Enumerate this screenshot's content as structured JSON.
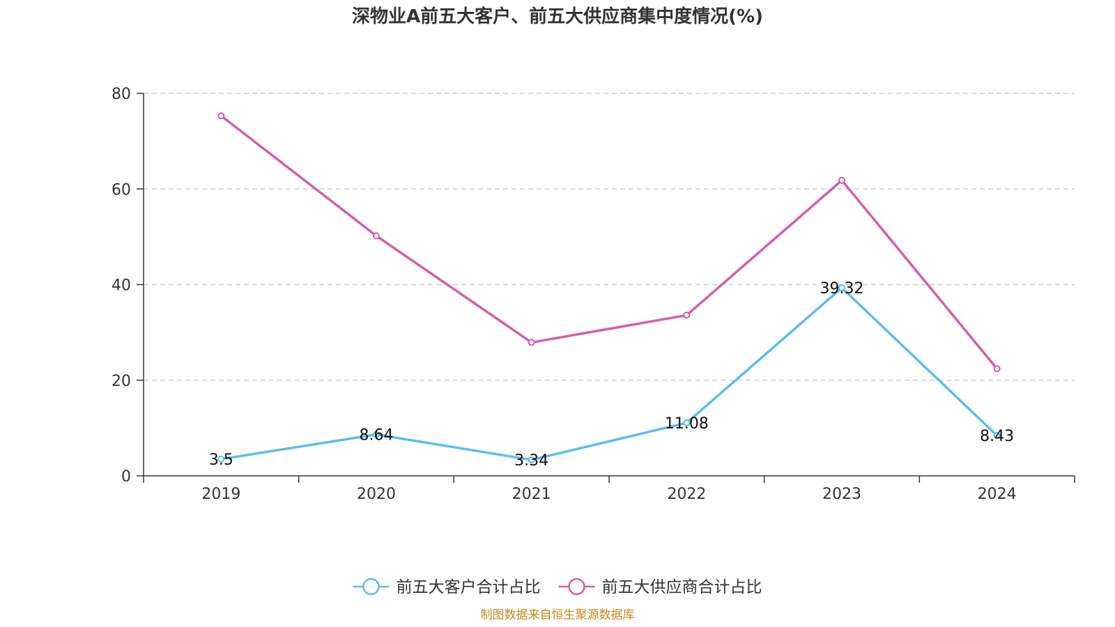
{
  "chart_data": {
    "type": "line",
    "title": "深物业A前五大客户、前五大供应商集中度情况(%)",
    "categories": [
      "2019",
      "2020",
      "2021",
      "2022",
      "2023",
      "2024"
    ],
    "ylim": [
      0,
      80
    ],
    "yticks": [
      "0",
      "20",
      "40",
      "60",
      "80"
    ],
    "grid": true,
    "legend_position": "bottom-center",
    "series": [
      {
        "name": "前五大客户合计占比",
        "color": "#5bbcef",
        "values": [
          3.5,
          8.64,
          3.34,
          11.08,
          39.32,
          8.43
        ],
        "labels": [
          "3.5",
          "8.64",
          "3.34",
          "11.08",
          "39.32",
          "8.43"
        ],
        "show_labels": true
      },
      {
        "name": "前五大供应商合计占比",
        "color": "#d45ea6",
        "values": [
          75.3,
          50.2,
          27.9,
          33.6,
          61.8,
          22.4
        ],
        "show_labels": false
      }
    ]
  },
  "source_text": "制图数据来自恒生聚源数据库",
  "source_color": "#c08a1a"
}
